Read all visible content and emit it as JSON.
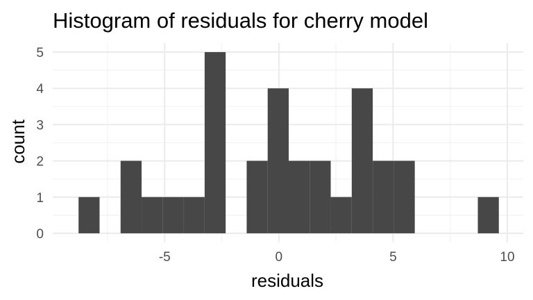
{
  "chart_data": {
    "type": "bar",
    "title": "Histogram of residuals for cherry model",
    "xlabel": "residuals",
    "ylabel": "count",
    "xlim": [
      -9.9,
      10.7
    ],
    "ylim": [
      -0.25,
      5.25
    ],
    "xticks": [
      -5,
      0,
      5,
      10
    ],
    "xtick_labels": [
      "-5",
      "0",
      "5",
      "10"
    ],
    "yticks": [
      0,
      1,
      2,
      3,
      4,
      5
    ],
    "ytick_labels": [
      "0",
      "1",
      "2",
      "3",
      "4",
      "5"
    ],
    "grid": true,
    "bins": [
      {
        "x0": -8.77,
        "x1": -7.85,
        "count": 1
      },
      {
        "x0": -7.85,
        "x1": -6.93,
        "count": 0
      },
      {
        "x0": -6.93,
        "x1": -6.01,
        "count": 2
      },
      {
        "x0": -6.01,
        "x1": -5.09,
        "count": 1
      },
      {
        "x0": -5.09,
        "x1": -4.17,
        "count": 1
      },
      {
        "x0": -4.17,
        "x1": -3.25,
        "count": 1
      },
      {
        "x0": -3.25,
        "x1": -2.33,
        "count": 5
      },
      {
        "x0": -2.33,
        "x1": -1.41,
        "count": 0
      },
      {
        "x0": -1.41,
        "x1": -0.49,
        "count": 2
      },
      {
        "x0": -0.49,
        "x1": 0.43,
        "count": 4
      },
      {
        "x0": 0.43,
        "x1": 1.35,
        "count": 2
      },
      {
        "x0": 1.35,
        "x1": 2.27,
        "count": 2
      },
      {
        "x0": 2.27,
        "x1": 3.19,
        "count": 1
      },
      {
        "x0": 3.19,
        "x1": 4.11,
        "count": 4
      },
      {
        "x0": 4.11,
        "x1": 5.03,
        "count": 2
      },
      {
        "x0": 5.03,
        "x1": 5.95,
        "count": 2
      },
      {
        "x0": 5.95,
        "x1": 6.87,
        "count": 0
      },
      {
        "x0": 6.87,
        "x1": 7.79,
        "count": 0
      },
      {
        "x0": 7.79,
        "x1": 8.71,
        "count": 0
      },
      {
        "x0": 8.71,
        "x1": 9.63,
        "count": 1
      }
    ],
    "colors": {
      "bar": "#474747",
      "grid_major": "#ebebeb",
      "grid_minor": "#f2f2f2"
    }
  }
}
